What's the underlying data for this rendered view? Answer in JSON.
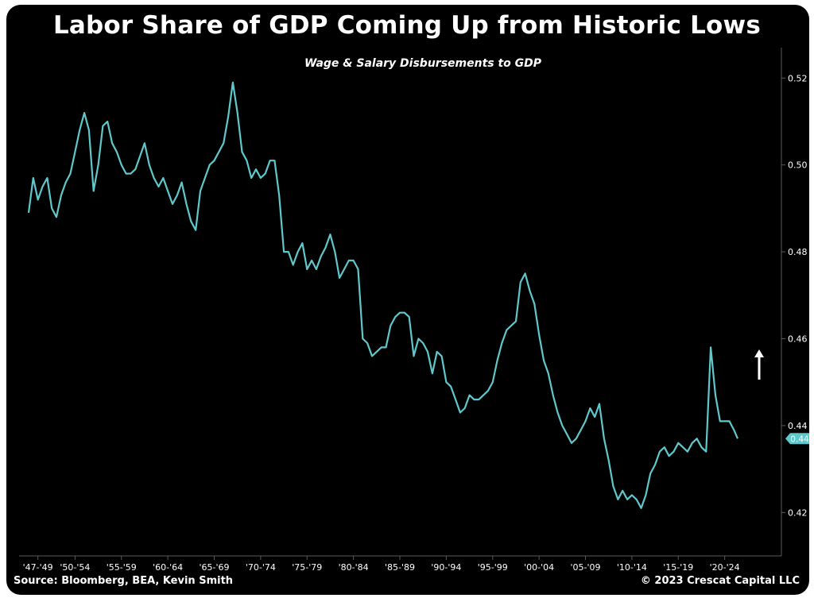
{
  "chart_data": {
    "type": "line",
    "title": "Labor Share of GDP Coming Up from Historic Lows",
    "subtitle": "Wage & Salary Disbursements to GDP",
    "xlabel": "",
    "ylabel": "",
    "xlim": [
      1947,
      2024
    ],
    "ylim": [
      0.41,
      0.527
    ],
    "yticks": [
      "0.52",
      "0.50",
      "0.48",
      "0.46",
      "0.44",
      "0.42"
    ],
    "ytick_values": [
      0.52,
      0.5,
      0.48,
      0.46,
      0.44,
      0.42
    ],
    "xtick_labels": [
      "'47-'49",
      "'50-'54",
      "'55-'59",
      "'60-'64",
      "'65-'69",
      "'70-'74",
      "'75-'79",
      "'80-'84",
      "'85-'89",
      "'90-'94",
      "'95-'99",
      "'00-'04",
      "'05-'09",
      "'10-'14",
      "'15-'19",
      "'20-'24"
    ],
    "xtick_centers": [
      1948,
      1952,
      1957,
      1962,
      1967,
      1972,
      1977,
      1982,
      1987,
      1992,
      1997,
      2002,
      2007,
      2012,
      2017,
      2022
    ],
    "last_value_label": "0.44",
    "line_color": "#5fc8cc",
    "series": [
      {
        "name": "Wage & Salary Disbursements to GDP",
        "x": [
          1947.0,
          1947.5,
          1948.0,
          1948.5,
          1949.0,
          1949.5,
          1950.0,
          1950.5,
          1951.0,
          1951.5,
          1952.0,
          1952.5,
          1953.0,
          1953.5,
          1954.0,
          1954.5,
          1955.0,
          1955.5,
          1956.0,
          1956.5,
          1957.0,
          1957.5,
          1958.0,
          1958.5,
          1959.0,
          1959.5,
          1960.0,
          1960.5,
          1961.0,
          1961.5,
          1962.0,
          1962.5,
          1963.0,
          1963.5,
          1964.0,
          1964.5,
          1965.0,
          1965.5,
          1966.0,
          1966.5,
          1967.0,
          1967.5,
          1968.0,
          1968.5,
          1969.0,
          1969.5,
          1970.0,
          1970.5,
          1971.0,
          1971.5,
          1972.0,
          1972.5,
          1973.0,
          1973.5,
          1974.0,
          1974.5,
          1975.0,
          1975.5,
          1976.0,
          1976.5,
          1977.0,
          1977.5,
          1978.0,
          1978.5,
          1979.0,
          1979.5,
          1980.0,
          1980.5,
          1981.0,
          1981.5,
          1982.0,
          1982.5,
          1983.0,
          1983.5,
          1984.0,
          1984.5,
          1985.0,
          1985.5,
          1986.0,
          1986.5,
          1987.0,
          1987.5,
          1988.0,
          1988.5,
          1989.0,
          1989.5,
          1990.0,
          1990.5,
          1991.0,
          1991.5,
          1992.0,
          1992.5,
          1993.0,
          1993.5,
          1994.0,
          1994.5,
          1995.0,
          1995.5,
          1996.0,
          1996.5,
          1997.0,
          1997.5,
          1998.0,
          1998.5,
          1999.0,
          1999.5,
          2000.0,
          2000.5,
          2001.0,
          2001.5,
          2002.0,
          2002.5,
          2003.0,
          2003.5,
          2004.0,
          2004.5,
          2005.0,
          2005.5,
          2006.0,
          2006.5,
          2007.0,
          2007.5,
          2008.0,
          2008.5,
          2009.0,
          2009.5,
          2010.0,
          2010.5,
          2011.0,
          2011.5,
          2012.0,
          2012.5,
          2013.0,
          2013.5,
          2014.0,
          2014.5,
          2015.0,
          2015.5,
          2016.0,
          2016.5,
          2017.0,
          2017.5,
          2018.0,
          2018.5,
          2019.0,
          2019.5,
          2020.0,
          2020.5,
          2021.0,
          2021.5,
          2022.0,
          2022.5,
          2023.0,
          2023.4
        ],
        "values": [
          0.489,
          0.497,
          0.492,
          0.495,
          0.497,
          0.49,
          0.488,
          0.493,
          0.496,
          0.498,
          0.503,
          0.508,
          0.512,
          0.508,
          0.494,
          0.5,
          0.509,
          0.51,
          0.505,
          0.503,
          0.5,
          0.498,
          0.498,
          0.499,
          0.502,
          0.505,
          0.5,
          0.497,
          0.495,
          0.497,
          0.494,
          0.491,
          0.493,
          0.496,
          0.491,
          0.487,
          0.485,
          0.494,
          0.497,
          0.5,
          0.501,
          0.503,
          0.505,
          0.511,
          0.519,
          0.512,
          0.503,
          0.501,
          0.497,
          0.499,
          0.497,
          0.498,
          0.501,
          0.501,
          0.493,
          0.48,
          0.48,
          0.477,
          0.48,
          0.482,
          0.476,
          0.478,
          0.476,
          0.479,
          0.481,
          0.484,
          0.48,
          0.474,
          0.476,
          0.478,
          0.478,
          0.476,
          0.46,
          0.459,
          0.456,
          0.457,
          0.458,
          0.458,
          0.463,
          0.465,
          0.466,
          0.466,
          0.465,
          0.456,
          0.46,
          0.459,
          0.457,
          0.452,
          0.457,
          0.456,
          0.45,
          0.449,
          0.446,
          0.443,
          0.444,
          0.447,
          0.446,
          0.446,
          0.447,
          0.448,
          0.45,
          0.455,
          0.459,
          0.462,
          0.463,
          0.464,
          0.473,
          0.475,
          0.471,
          0.468,
          0.461,
          0.455,
          0.452,
          0.447,
          0.443,
          0.44,
          0.438,
          0.436,
          0.437,
          0.439,
          0.441,
          0.444,
          0.442,
          0.445,
          0.437,
          0.432,
          0.426,
          0.423,
          0.425,
          0.423,
          0.424,
          0.423,
          0.421,
          0.424,
          0.429,
          0.431,
          0.434,
          0.435,
          0.433,
          0.434,
          0.436,
          0.435,
          0.434,
          0.436,
          0.437,
          0.435,
          0.434,
          0.458,
          0.447,
          0.441,
          0.441,
          0.441,
          0.439,
          0.437
        ]
      }
    ]
  },
  "annotation": {
    "arrow_symbol": "↑",
    "arrow_direction": "up",
    "arrow_color": "#ffffff"
  },
  "footer": {
    "source": "Source: Bloomberg, BEA, Kevin Smith",
    "copyright": "© 2023 Crescat Capital LLC"
  },
  "colors": {
    "background": "#000000",
    "text": "#ffffff",
    "axis": "#5a5a5a",
    "line": "#5fc8cc",
    "value_badge": "#5fc8cc"
  }
}
